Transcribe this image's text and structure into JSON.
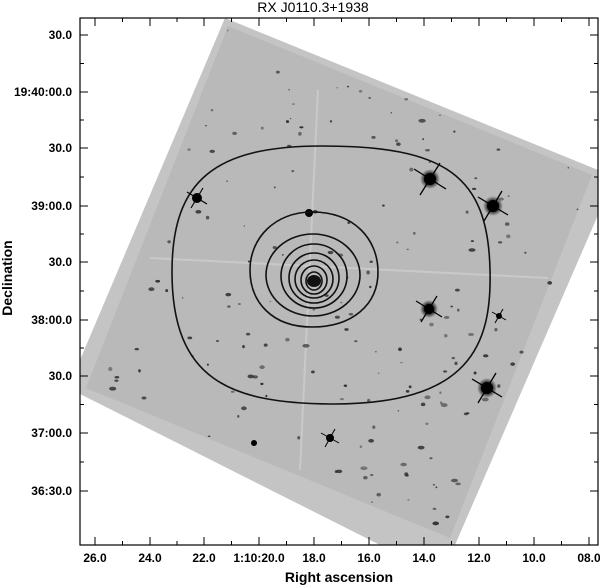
{
  "figure": {
    "title": "RX J0110.3+1938",
    "xlabel": "Right ascension",
    "ylabel": "Declination",
    "x_ticks": [
      "26.0",
      "24.0",
      "22.0",
      "1:10:20.0",
      "18.0",
      "16.0",
      "14.0",
      "12.0",
      "10.0",
      "08.0"
    ],
    "y_ticks": [
      "30.0",
      "19:40:00.0",
      "30.0",
      "39:00.0",
      "30.0",
      "38:00.0",
      "30.0",
      "37:00.0",
      "36:30.0"
    ],
    "colors": {
      "frame": "#000000",
      "sky_background": "#bdbdbd",
      "contour": "#111111",
      "source": "#0a0a0a"
    }
  }
}
